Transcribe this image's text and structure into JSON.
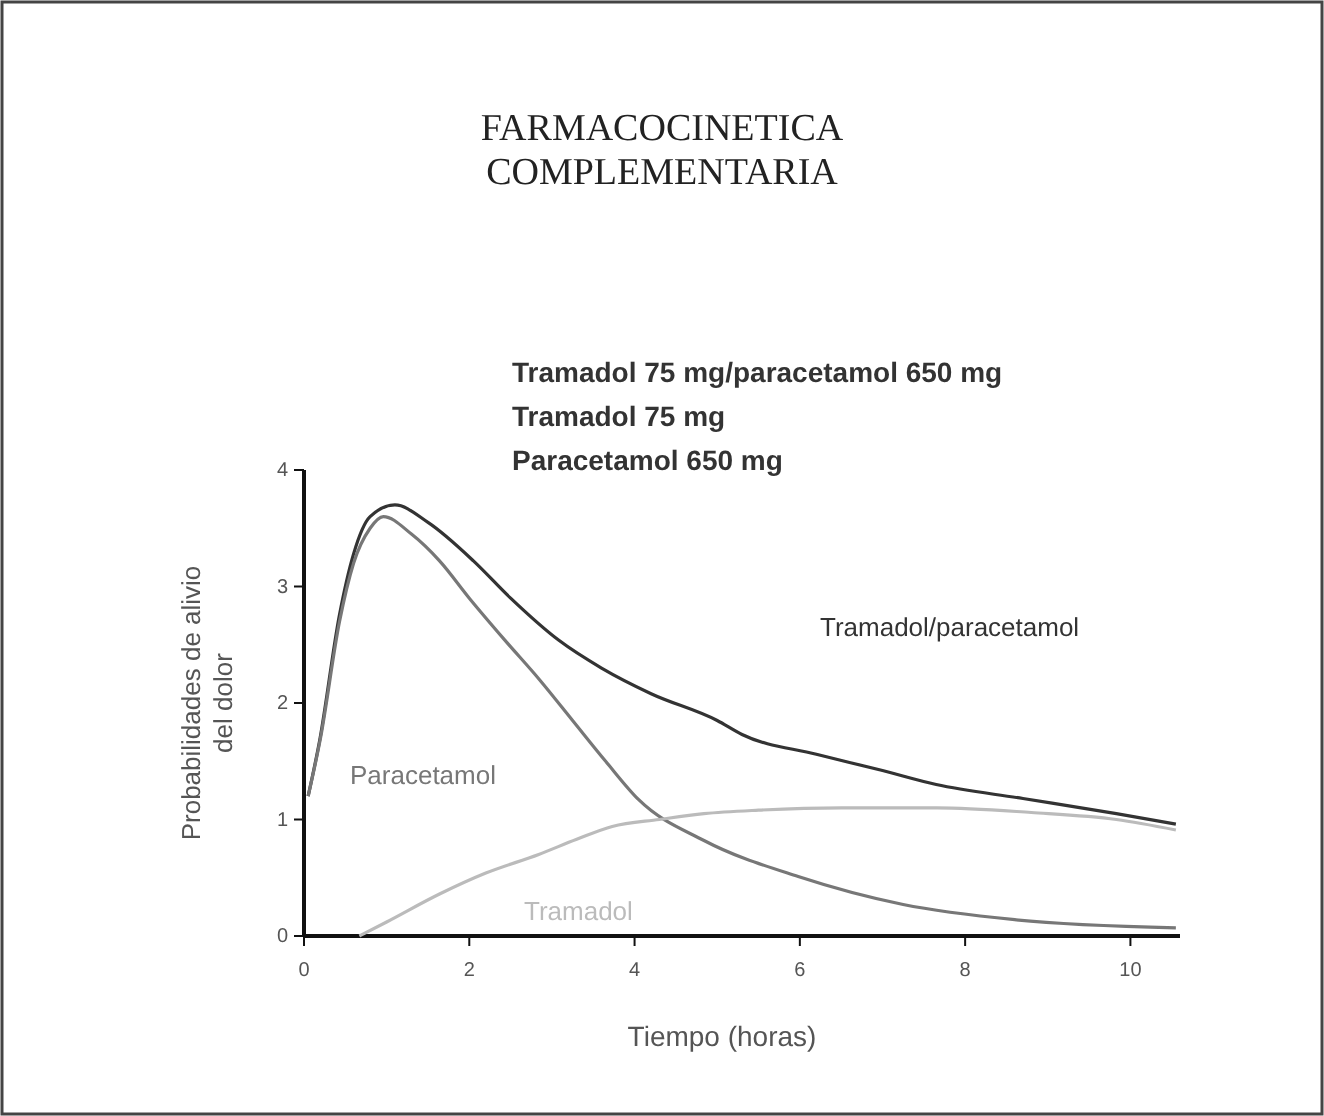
{
  "chart_data": {
    "type": "line",
    "title": "FARMACOCINETICA\nCOMPLEMENTARIA",
    "xlabel": "Tiempo (horas)",
    "ylabel": "Probabilidades de alivio\ndel dolor",
    "annotations": [
      "Tramadol 75 mg/paracetamol 650 mg",
      "Tramadol 75 mg",
      "Paracetamol 650 mg"
    ],
    "xlim": [
      0,
      10.6
    ],
    "xticks": [
      0,
      2,
      4,
      6,
      8,
      10
    ],
    "ylim": [
      0,
      4
    ],
    "yticks": [
      0,
      1,
      2,
      3,
      4
    ],
    "grid": false,
    "marker": "none",
    "line_style": "solid",
    "series": [
      {
        "name": "Tramadol/paracetamol",
        "color": "#333333",
        "x": [
          0.05,
          0.19,
          0.43,
          0.6,
          0.8,
          1.1,
          1.5,
          2.05,
          2.5,
          3.08,
          3.6,
          4.2,
          5.0,
          5.3,
          6.2,
          7.0,
          7.65,
          8.7,
          9.83,
          10.55
        ],
        "values": [
          1.2,
          1.68,
          2.76,
          3.28,
          3.6,
          3.7,
          3.55,
          3.22,
          2.9,
          2.54,
          2.3,
          2.08,
          1.85,
          1.73,
          1.56,
          1.42,
          1.3,
          1.18,
          1.05,
          0.96
        ]
      },
      {
        "name": "Paracetamol",
        "color": "#777777",
        "x": [
          0.05,
          0.2,
          0.43,
          0.6,
          0.8,
          0.96,
          1.3,
          1.64,
          2.0,
          2.43,
          2.85,
          3.25,
          3.65,
          4.05,
          4.84,
          5.98,
          7.25,
          8.6,
          10.55
        ],
        "values": [
          1.2,
          1.7,
          2.7,
          3.2,
          3.5,
          3.6,
          3.45,
          3.22,
          2.9,
          2.54,
          2.2,
          1.85,
          1.5,
          1.17,
          0.82,
          0.51,
          0.27,
          0.14,
          0.07
        ]
      },
      {
        "name": "Tramadol",
        "color": "#bbbbbb",
        "x": [
          0.67,
          1.0,
          1.64,
          2.2,
          2.84,
          3.3,
          3.73,
          4.3,
          4.84,
          5.5,
          6.5,
          7.66,
          8.8,
          9.83,
          10.55
        ],
        "values": [
          0,
          0.12,
          0.36,
          0.54,
          0.7,
          0.83,
          0.94,
          1.0,
          1.05,
          1.08,
          1.1,
          1.1,
          1.06,
          1.0,
          0.91
        ]
      }
    ]
  }
}
